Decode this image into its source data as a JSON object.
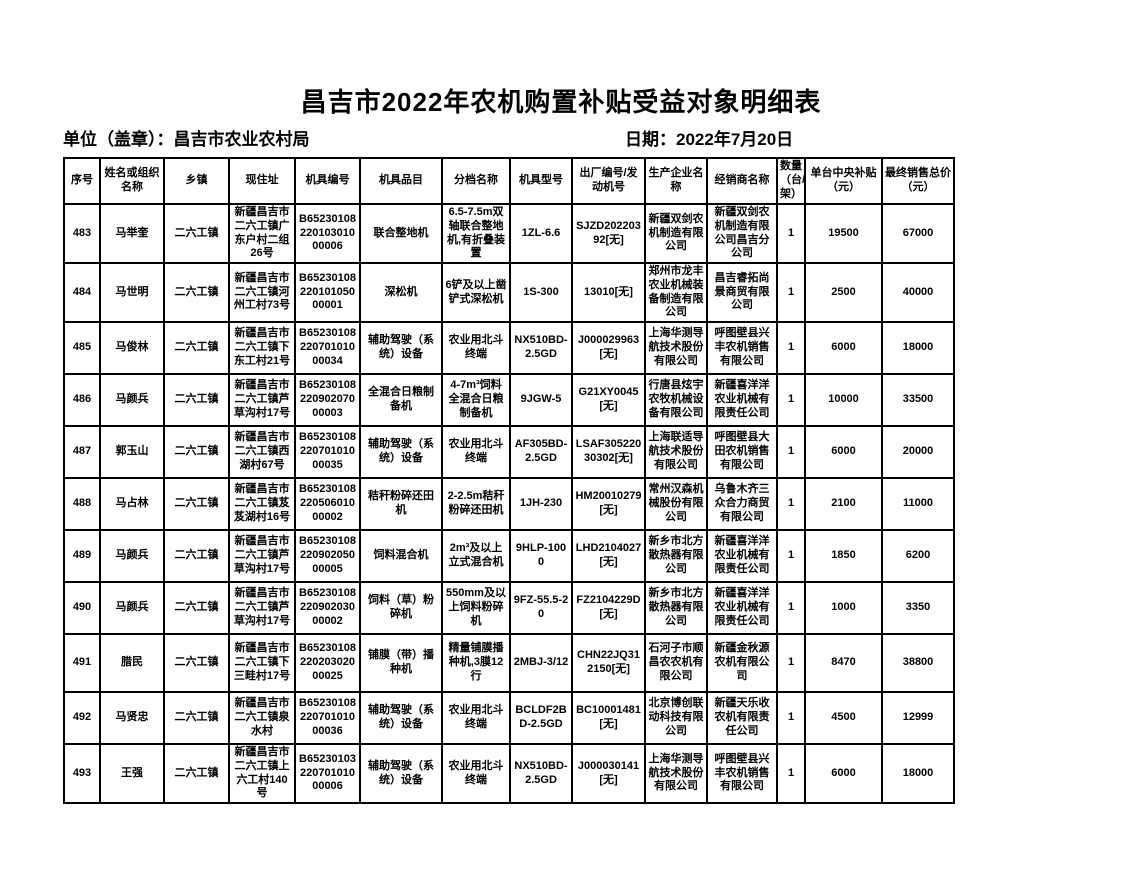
{
  "page": {
    "title": "昌吉市2022年农机购置补贴受益对象明细表",
    "unit_label": "单位（盖章）：昌吉市农业农村局",
    "date_label": "日期：2022年7月20日"
  },
  "table": {
    "columns": [
      "序号",
      "姓名或组织名称",
      "乡镇",
      "现住址",
      "机具编号",
      "机具品目",
      "分档名称",
      "机具型号",
      "出厂编号/发动机号",
      "生产企业名称",
      "经销商名称",
      "数量（台/架）",
      "单台中央补贴（元）",
      "最终销售总价（元）"
    ],
    "rows": [
      [
        "483",
        "马举奎",
        "二六工镇",
        "新疆昌吉市二六工镇广东户村二组26号",
        "B6523010822010301000006",
        "联合整地机",
        "6.5-7.5m双轴联合整地机,有折叠装置",
        "1ZL-6.6",
        "SJZD20220392[无]",
        "新疆双剑农机制造有限公司",
        "新疆双剑农机制造有限公司昌吉分公司",
        "1",
        "19500",
        "67000"
      ],
      [
        "484",
        "马世明",
        "二六工镇",
        "新疆昌吉市二六工镇河州工村73号",
        "B6523010822010105000001",
        "深松机",
        "6铲及以上凿铲式深松机",
        "1S-300",
        "13010[无]",
        "郑州市龙丰农业机械装备制造有限公司",
        "昌吉睿拓尚景商贸有限公司",
        "1",
        "2500",
        "40000"
      ],
      [
        "485",
        "马俊林",
        "二六工镇",
        "新疆昌吉市二六工镇下东工村21号",
        "B6523010822070101000034",
        "辅助驾驶（系统）设备",
        "农业用北斗终端",
        "NX510BD-2.5GD",
        "J000029963[无]",
        "上海华测导航技术股份有限公司",
        "呼图壁县兴丰农机销售有限公司",
        "1",
        "6000",
        "18000"
      ],
      [
        "486",
        "马颜兵",
        "二六工镇",
        "新疆昌吉市二六工镇芦草沟村17号",
        "B6523010822090207000003",
        "全混合日粮制备机",
        "4-7m³饲料全混合日粮制备机",
        "9JGW-5",
        "G21XY0045[无]",
        "行唐县炫宇农牧机械设备有限公司",
        "新疆喜洋洋农业机械有限责任公司",
        "1",
        "10000",
        "33500"
      ],
      [
        "487",
        "郭玉山",
        "二六工镇",
        "新疆昌吉市二六工镇西湖村67号",
        "B6523010822070101000035",
        "辅助驾驶（系统）设备",
        "农业用北斗终端",
        "AF305BD-2.5GD",
        "LSAF30522030302[无]",
        "上海联适导航技术股份有限公司",
        "呼图壁县大田农机销售有限公司",
        "1",
        "6000",
        "20000"
      ],
      [
        "488",
        "马占林",
        "二六工镇",
        "新疆昌吉市二六工镇芨芨湖村16号",
        "B6523010822050601000002",
        "秸秆粉碎还田机",
        "2-2.5m秸秆粉碎还田机",
        "1JH-230",
        "HM20010279[无]",
        "常州汉森机械股份有限公司",
        "乌鲁木齐三众合力商贸有限公司",
        "1",
        "2100",
        "11000"
      ],
      [
        "489",
        "马颜兵",
        "二六工镇",
        "新疆昌吉市二六工镇芦草沟村17号",
        "B6523010822090205000005",
        "饲料混合机",
        "2m³及以上立式混合机",
        "9HLP-1000",
        "LHD2104027[无]",
        "新乡市北方散热器有限公司",
        "新疆喜洋洋农业机械有限责任公司",
        "1",
        "1850",
        "6200"
      ],
      [
        "490",
        "马颜兵",
        "二六工镇",
        "新疆昌吉市二六工镇芦草沟村17号",
        "B6523010822090203000002",
        "饲料（草）粉碎机",
        "550mm及以上饲料粉碎机",
        "9FZ-55.5-20",
        "FZ2104229D[无]",
        "新乡市北方散热器有限公司",
        "新疆喜洋洋农业机械有限责任公司",
        "1",
        "1000",
        "3350"
      ],
      [
        "491",
        "腊民",
        "二六工镇",
        "新疆昌吉市二六工镇下三畦村17号",
        "B6523010822020302000025",
        "铺膜（带）播种机",
        "精量铺膜播种机,3膜12行",
        "2MBJ-3/12",
        "CHN22JQ312150[无]",
        "石河子市顺昌农农机有限公司",
        "新疆金秋源农机有限公司",
        "1",
        "8470",
        "38800"
      ],
      [
        "492",
        "马贤忠",
        "二六工镇",
        "新疆昌吉市二六工镇泉水村",
        "B6523010822070101000036",
        "辅助驾驶（系统）设备",
        "农业用北斗终端",
        "BCLDF2BD-2.5GD",
        "BC10001481[无]",
        "北京博创联动科技有限公司",
        "新疆天乐收农机有限责任公司",
        "1",
        "4500",
        "12999"
      ],
      [
        "493",
        "王强",
        "二六工镇",
        "新疆昌吉市二六工镇上六工村140号",
        "B6523010322070101000006",
        "辅助驾驶（系统）设备",
        "农业用北斗终端",
        "NX510BD-2.5GD",
        "J000030141[无]",
        "上海华测导航技术股份有限公司",
        "呼图壁县兴丰农机销售有限公司",
        "1",
        "6000",
        "18000"
      ]
    ]
  }
}
